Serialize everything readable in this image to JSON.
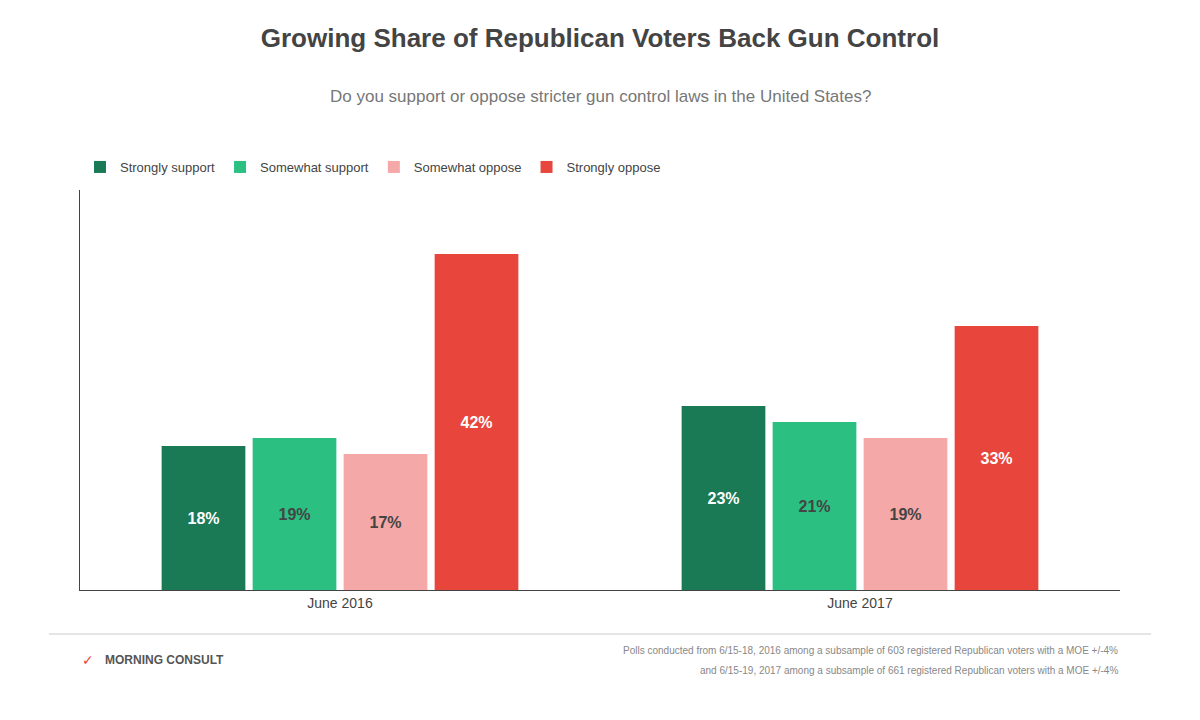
{
  "chart_data": {
    "type": "bar",
    "title": "Growing Share of Republican Voters Back Gun Control",
    "subtitle": "Do you support or oppose stricter gun control laws in the United States?",
    "categories": [
      "June 2016",
      "June 2017"
    ],
    "series": [
      {
        "name": "Strongly support",
        "color": "#1a7a55",
        "values": [
          18,
          23
        ],
        "value_labels": [
          "18%",
          "23%"
        ]
      },
      {
        "name": "Somewhat support",
        "color": "#2bbf82",
        "values": [
          19,
          21
        ],
        "value_labels": [
          "19%",
          "21%"
        ]
      },
      {
        "name": "Somewhat oppose",
        "color": "#f5a8a8",
        "values": [
          17,
          19
        ],
        "value_labels": [
          "17%",
          "19%"
        ]
      },
      {
        "name": "Strongly oppose",
        "color": "#e8453c",
        "values": [
          42,
          33
        ],
        "value_labels": [
          "42%",
          "33%"
        ]
      }
    ],
    "ylim": [
      0,
      50
    ],
    "grid": false,
    "legend": "upper left",
    "data_labels": true,
    "tick_labels": "x",
    "annotations": [
      {
        "text": "✓",
        "color": "#e8453c"
      },
      {
        "text": "MORNING CONSULT"
      },
      {
        "text": "Polls conducted from 6/15-18, 2016 among a subsample of 603 registered Republican voters with a MOE +/-4%"
      },
      {
        "text": "and 6/15-19, 2017 among a subsample of 661 registered Republican voters with a MOE +/-4%"
      }
    ]
  }
}
